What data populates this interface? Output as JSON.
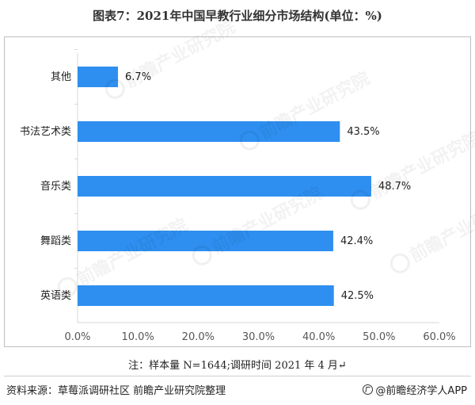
{
  "title": "图表7：2021年中国早教行业细分市场结构(单位：%)",
  "note": "注：样本量 N=1644;调研时间 2021 年 4 月↵",
  "source": "资料来源：草莓派调研社区 前瞻产业研究院整理",
  "brand": "@前瞻经济学人APP",
  "watermark_text": "前瞻产业研究院",
  "colors": {
    "bar": "#2e8ff0",
    "axis": "#d9d9d9",
    "frame": "#bfbfbf"
  },
  "chart_data": {
    "type": "bar",
    "orientation": "horizontal",
    "categories": [
      "其他",
      "书法艺术类",
      "音乐类",
      "舞蹈类",
      "英语类"
    ],
    "values": [
      6.7,
      43.5,
      48.7,
      42.4,
      42.5
    ],
    "value_labels": [
      "6.7%",
      "43.5%",
      "48.7%",
      "42.4%",
      "42.5%"
    ],
    "xlim": [
      0,
      60
    ],
    "xticks": [
      0,
      10,
      20,
      30,
      40,
      50,
      60
    ],
    "xtick_labels": [
      "0.0%",
      "10.0%",
      "20.0%",
      "30.0%",
      "40.0%",
      "50.0%",
      "60.0%"
    ],
    "grid": false,
    "legend": "none"
  }
}
